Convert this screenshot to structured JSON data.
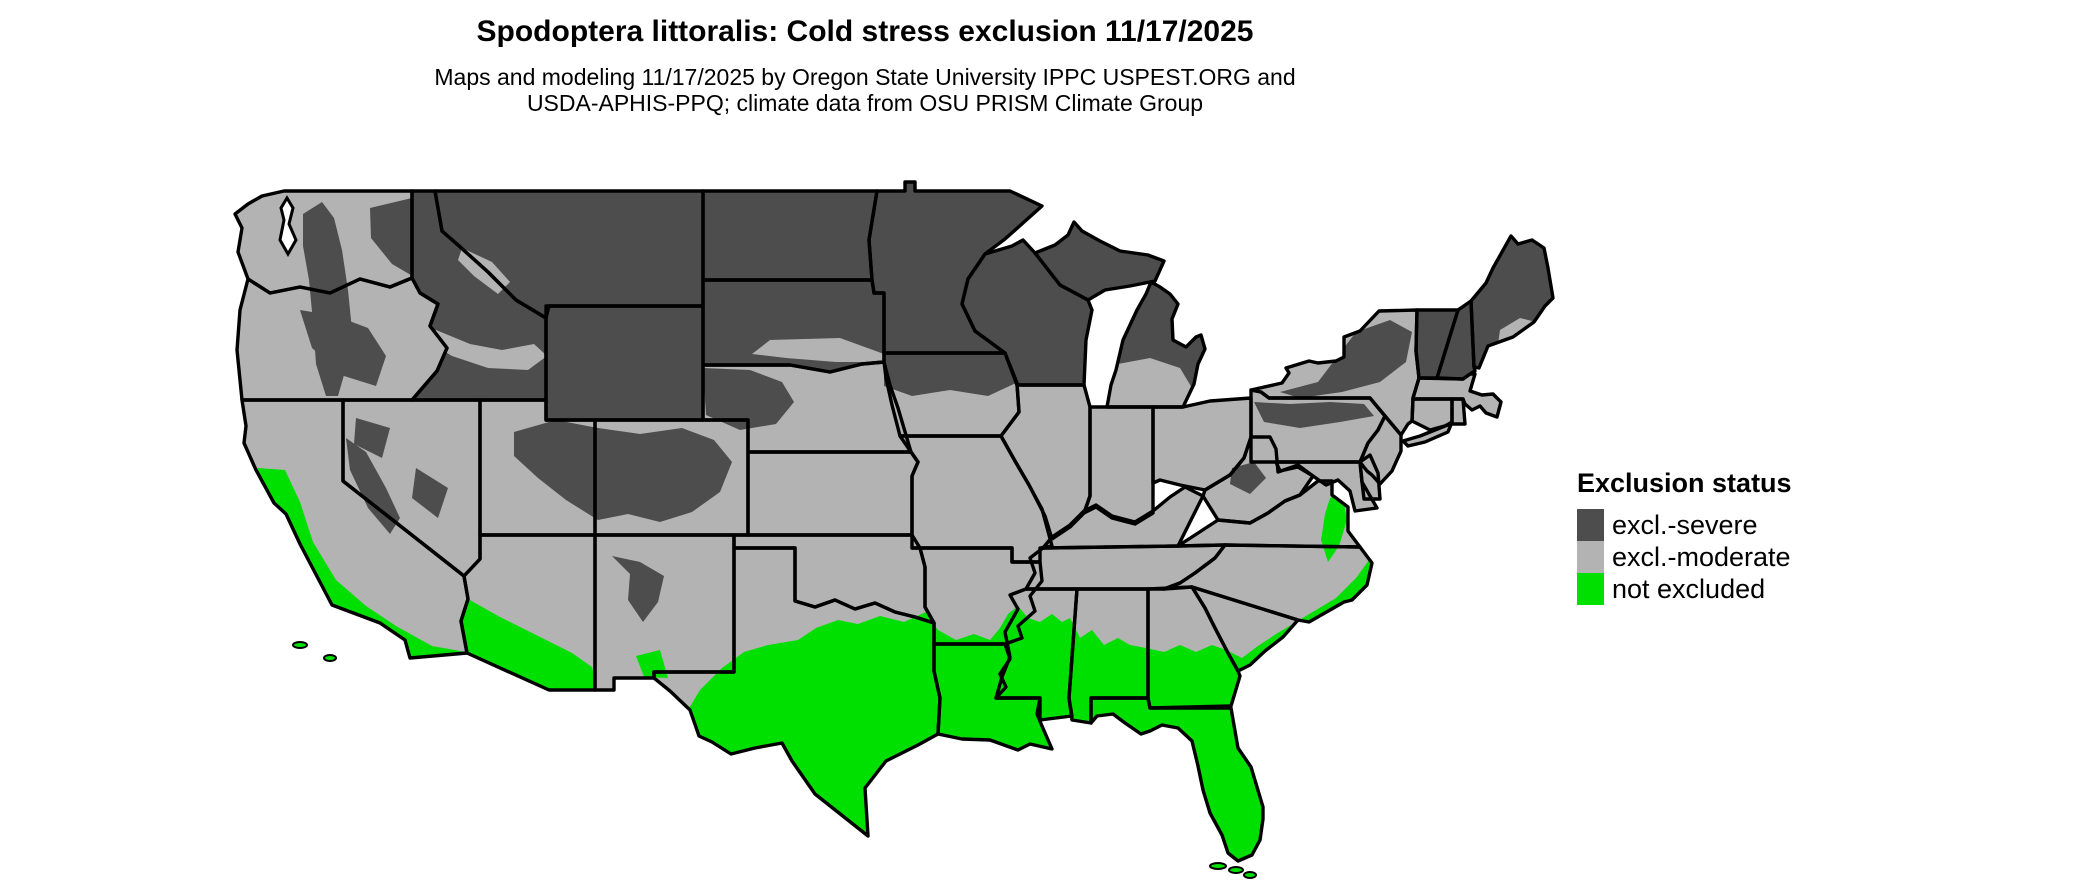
{
  "header": {
    "title": "Spodoptera littoralis: Cold stress exclusion 11/17/2025",
    "subtitle_line1": "Maps and modeling 11/17/2025 by Oregon State University IPPC USPEST.ORG and",
    "subtitle_line2": "USDA-APHIS-PPQ; climate data from OSU PRISM Climate Group"
  },
  "legend": {
    "title": "Exclusion status",
    "items": [
      {
        "status": "severe",
        "label": "excl.-severe",
        "color": "#4d4d4d"
      },
      {
        "status": "moderate",
        "label": "excl.-moderate",
        "color": "#b3b3b3"
      },
      {
        "status": "not_excluded",
        "label": "not excluded",
        "color": "#00e000"
      }
    ]
  },
  "map": {
    "border_color": "#000000",
    "water_color": "#ffffff",
    "states": [
      {
        "id": "WA",
        "name": "Washington",
        "status": "moderate"
      },
      {
        "id": "OR",
        "name": "Oregon",
        "status": "moderate"
      },
      {
        "id": "CA",
        "name": "California",
        "status": "moderate"
      },
      {
        "id": "ID",
        "name": "Idaho",
        "status": "severe"
      },
      {
        "id": "NV",
        "name": "Nevada",
        "status": "moderate"
      },
      {
        "id": "UT",
        "name": "Utah",
        "status": "moderate"
      },
      {
        "id": "AZ",
        "name": "Arizona",
        "status": "moderate"
      },
      {
        "id": "MT",
        "name": "Montana",
        "status": "severe"
      },
      {
        "id": "WY",
        "name": "Wyoming",
        "status": "severe"
      },
      {
        "id": "CO",
        "name": "Colorado",
        "status": "moderate"
      },
      {
        "id": "NM",
        "name": "New Mexico",
        "status": "moderate"
      },
      {
        "id": "ND",
        "name": "North Dakota",
        "status": "severe"
      },
      {
        "id": "SD",
        "name": "South Dakota",
        "status": "severe"
      },
      {
        "id": "NE",
        "name": "Nebraska",
        "status": "moderate"
      },
      {
        "id": "KS",
        "name": "Kansas",
        "status": "moderate"
      },
      {
        "id": "OK",
        "name": "Oklahoma",
        "status": "moderate"
      },
      {
        "id": "TX",
        "name": "Texas",
        "status": "moderate"
      },
      {
        "id": "MN",
        "name": "Minnesota",
        "status": "severe"
      },
      {
        "id": "IA",
        "name": "Iowa",
        "status": "moderate"
      },
      {
        "id": "MO",
        "name": "Missouri",
        "status": "moderate"
      },
      {
        "id": "AR",
        "name": "Arkansas",
        "status": "moderate"
      },
      {
        "id": "LA",
        "name": "Louisiana",
        "status": "not_excluded"
      },
      {
        "id": "WI",
        "name": "Wisconsin",
        "status": "severe"
      },
      {
        "id": "IL",
        "name": "Illinois",
        "status": "moderate"
      },
      {
        "id": "MS",
        "name": "Mississippi",
        "status": "moderate"
      },
      {
        "id": "MI",
        "name": "Michigan",
        "status": "severe"
      },
      {
        "id": "IN",
        "name": "Indiana",
        "status": "moderate"
      },
      {
        "id": "OH",
        "name": "Ohio",
        "status": "moderate"
      },
      {
        "id": "KY",
        "name": "Kentucky",
        "status": "moderate"
      },
      {
        "id": "TN",
        "name": "Tennessee",
        "status": "moderate"
      },
      {
        "id": "AL",
        "name": "Alabama",
        "status": "moderate"
      },
      {
        "id": "GA",
        "name": "Georgia",
        "status": "moderate"
      },
      {
        "id": "FL",
        "name": "Florida",
        "status": "not_excluded"
      },
      {
        "id": "SC",
        "name": "South Carolina",
        "status": "moderate"
      },
      {
        "id": "NC",
        "name": "North Carolina",
        "status": "moderate"
      },
      {
        "id": "VA",
        "name": "Virginia",
        "status": "moderate"
      },
      {
        "id": "WV",
        "name": "West Virginia",
        "status": "moderate"
      },
      {
        "id": "MD",
        "name": "Maryland",
        "status": "moderate"
      },
      {
        "id": "DE",
        "name": "Delaware",
        "status": "moderate"
      },
      {
        "id": "PA",
        "name": "Pennsylvania",
        "status": "moderate"
      },
      {
        "id": "NJ",
        "name": "New Jersey",
        "status": "moderate"
      },
      {
        "id": "NY",
        "name": "New York",
        "status": "moderate"
      },
      {
        "id": "CT",
        "name": "Connecticut",
        "status": "moderate"
      },
      {
        "id": "RI",
        "name": "Rhode Island",
        "status": "moderate"
      },
      {
        "id": "MA",
        "name": "Massachusetts",
        "status": "moderate"
      },
      {
        "id": "VT",
        "name": "Vermont",
        "status": "severe"
      },
      {
        "id": "NH",
        "name": "New Hampshire",
        "status": "severe"
      },
      {
        "id": "ME",
        "name": "Maine",
        "status": "severe"
      }
    ]
  }
}
